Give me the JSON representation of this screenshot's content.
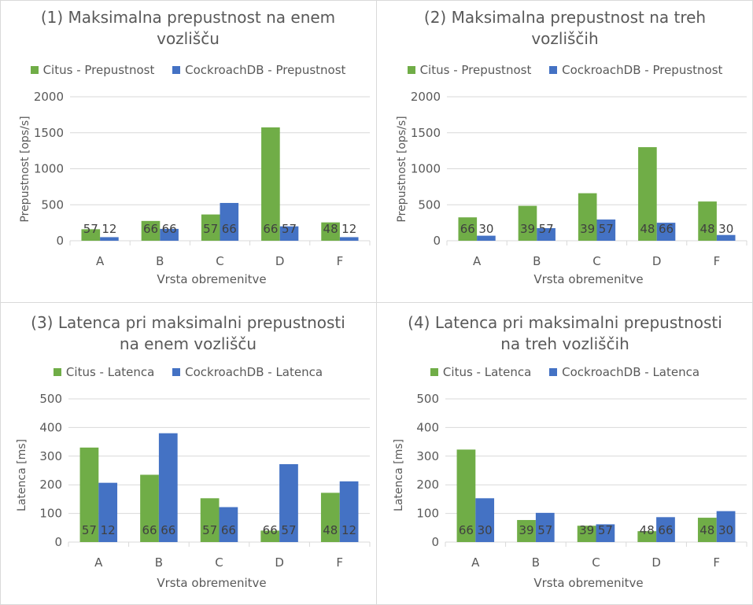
{
  "colors": {
    "citus": "#70ad47",
    "cockroach": "#4472c4",
    "grid": "#d9d9d9",
    "text": "#595959"
  },
  "chart_data": [
    {
      "type": "bar",
      "title": "(1) Maksimalna prepustnost na enem vozlišču",
      "title_lines": [
        "(1) Maksimalna prepustnost na enem",
        "vozlišču"
      ],
      "xlabel": "Vrsta obremenitve",
      "ylabel": "Prepustnost [ops/s]",
      "ylim": [
        0,
        2000
      ],
      "yticks": [
        0,
        500,
        1000,
        1500,
        2000
      ],
      "categories": [
        "A",
        "B",
        "C",
        "D",
        "F"
      ],
      "legend_position": "top",
      "series": [
        {
          "name": "Citus - Prepustnost",
          "values": [
            160,
            275,
            365,
            1575,
            255
          ],
          "labels": [
            "57",
            "66",
            "57",
            "66",
            "48"
          ]
        },
        {
          "name": "CockroachDB - Prepustnost",
          "values": [
            50,
            165,
            525,
            200,
            50
          ],
          "labels": [
            "12",
            "66",
            "66",
            "57",
            "12"
          ]
        }
      ]
    },
    {
      "type": "bar",
      "title": "(2) Maksimalna prepustnost na treh vozliščih",
      "title_lines": [
        "(2) Maksimalna prepustnost na treh",
        "vozliščih"
      ],
      "xlabel": "Vrsta obremenitve",
      "ylabel": "Prepustnost [ops/s]",
      "ylim": [
        0,
        2000
      ],
      "yticks": [
        0,
        500,
        1000,
        1500,
        2000
      ],
      "categories": [
        "A",
        "B",
        "C",
        "D",
        "F"
      ],
      "legend_position": "top",
      "series": [
        {
          "name": "Citus - Prepustnost",
          "values": [
            325,
            485,
            660,
            1300,
            545
          ],
          "labels": [
            "66",
            "39",
            "39",
            "48",
            "48"
          ]
        },
        {
          "name": "CockroachDB - Prepustnost",
          "values": [
            70,
            175,
            295,
            250,
            80
          ],
          "labels": [
            "30",
            "57",
            "57",
            "66",
            "30"
          ]
        }
      ]
    },
    {
      "type": "bar",
      "title": "(3) Latenca pri maksimalni prepustnosti na enem vozlišču",
      "title_lines": [
        "(3) Latenca pri maksimalni prepustnosti",
        "na enem vozlišču"
      ],
      "xlabel": "Vrsta obremenitve",
      "ylabel": "Latenca [ms]",
      "ylim": [
        0,
        500
      ],
      "yticks": [
        0,
        100,
        200,
        300,
        400,
        500
      ],
      "categories": [
        "A",
        "B",
        "C",
        "D",
        "F"
      ],
      "legend_position": "top",
      "series": [
        {
          "name": "Citus - Latenca",
          "values": [
            330,
            235,
            153,
            40,
            172
          ],
          "labels": [
            "57",
            "66",
            "57",
            "66",
            "48"
          ]
        },
        {
          "name": "CockroachDB - Latenca",
          "values": [
            207,
            380,
            122,
            272,
            212
          ],
          "labels": [
            "12",
            "66",
            "66",
            "57",
            "12"
          ]
        }
      ]
    },
    {
      "type": "bar",
      "title": "(4) Latenca pri maksimalni prepustnosti na treh vozliščih",
      "title_lines": [
        "(4) Latenca pri maksimalni prepustnosti",
        "na treh vozliščih"
      ],
      "xlabel": "Vrsta obremenitve",
      "ylabel": "Latenca [ms]",
      "ylim": [
        0,
        500
      ],
      "yticks": [
        0,
        100,
        200,
        300,
        400,
        500
      ],
      "categories": [
        "A",
        "B",
        "C",
        "D",
        "F"
      ],
      "legend_position": "top",
      "series": [
        {
          "name": "Citus - Latenca",
          "values": [
            323,
            77,
            57,
            38,
            85
          ],
          "labels": [
            "66",
            "39",
            "39",
            "48",
            "48"
          ]
        },
        {
          "name": "CockroachDB - Latenca",
          "values": [
            153,
            102,
            62,
            87,
            108
          ],
          "labels": [
            "30",
            "57",
            "57",
            "66",
            "30"
          ]
        }
      ]
    }
  ]
}
